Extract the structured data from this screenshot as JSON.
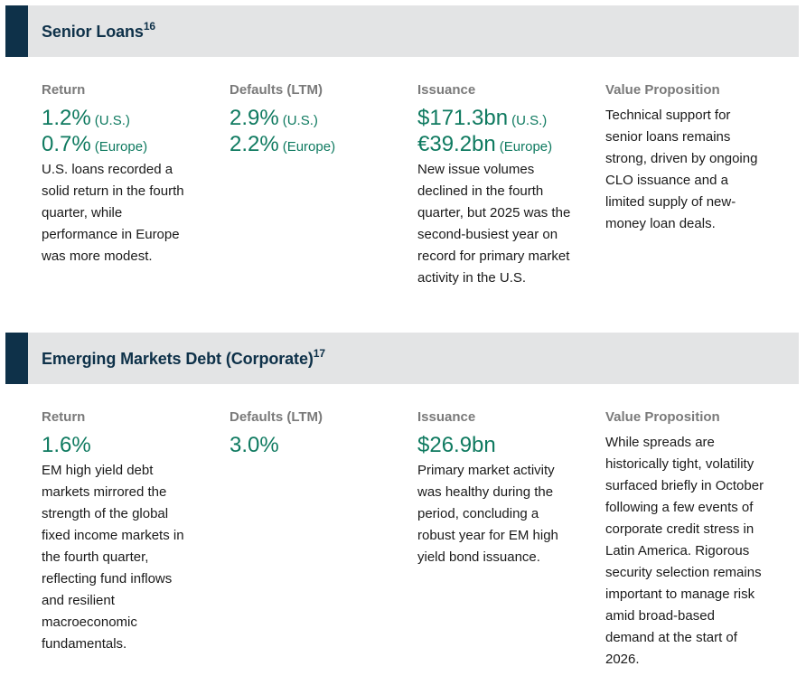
{
  "sections": [
    {
      "title": "Senior Loans",
      "footnote": "16",
      "return": {
        "label": "Return",
        "values": [
          {
            "value": "1.2%",
            "region": "(U.S.)"
          },
          {
            "value": "0.7%",
            "region": "(Europe)"
          }
        ],
        "lines": [
          "U.S. loans recorded a",
          "solid return in the fourth",
          "quarter, while",
          "performance in Europe",
          "was more modest."
        ]
      },
      "defaults": {
        "label": "Defaults (LTM)",
        "values": [
          {
            "value": "2.9%",
            "region": "(U.S.)"
          },
          {
            "value": "2.2%",
            "region": "(Europe)"
          }
        ]
      },
      "issuance": {
        "label": "Issuance",
        "values": [
          {
            "value": "$171.3bn",
            "region": "(U.S.)"
          },
          {
            "value": "€39.2bn",
            "region": "(Europe)"
          }
        ],
        "lines": [
          "New issue volumes",
          "declined in the fourth",
          "quarter, but 2025 was the",
          "second-busiest year on",
          "record for primary market",
          "activity in the U.S."
        ]
      },
      "value_proposition": {
        "label": "Value Proposition",
        "lines": [
          "Technical support for",
          "senior loans remains",
          "strong, driven by ongoing",
          "CLO issuance and a",
          "limited supply of new-",
          "money loan deals."
        ]
      }
    },
    {
      "title": "Emerging Markets Debt (Corporate)",
      "footnote": "17",
      "return": {
        "label": "Return",
        "values": [
          {
            "value": "1.6%",
            "region": ""
          }
        ],
        "lines": [
          "EM high yield debt",
          "markets mirrored the",
          "strength of the global",
          "fixed income markets in",
          "the fourth quarter,",
          "reflecting fund inflows",
          "and resilient",
          "macroeconomic",
          "fundamentals."
        ]
      },
      "defaults": {
        "label": "Defaults (LTM)",
        "values": [
          {
            "value": "3.0%",
            "region": ""
          }
        ]
      },
      "issuance": {
        "label": "Issuance",
        "values": [
          {
            "value": "$26.9bn",
            "region": ""
          }
        ],
        "lines": [
          "Primary market activity",
          "was healthy during the",
          "period, concluding a",
          "robust year for EM high",
          "yield bond issuance."
        ]
      },
      "value_proposition": {
        "label": "Value Proposition",
        "lines": [
          "While spreads are",
          "historically tight, volatility",
          "surfaced briefly in October",
          "following a few events of",
          "corporate credit stress in",
          "Latin America. Rigorous",
          "security selection remains",
          "important to manage risk",
          "amid broad-based",
          "demand at the start of",
          "2026."
        ]
      }
    }
  ]
}
